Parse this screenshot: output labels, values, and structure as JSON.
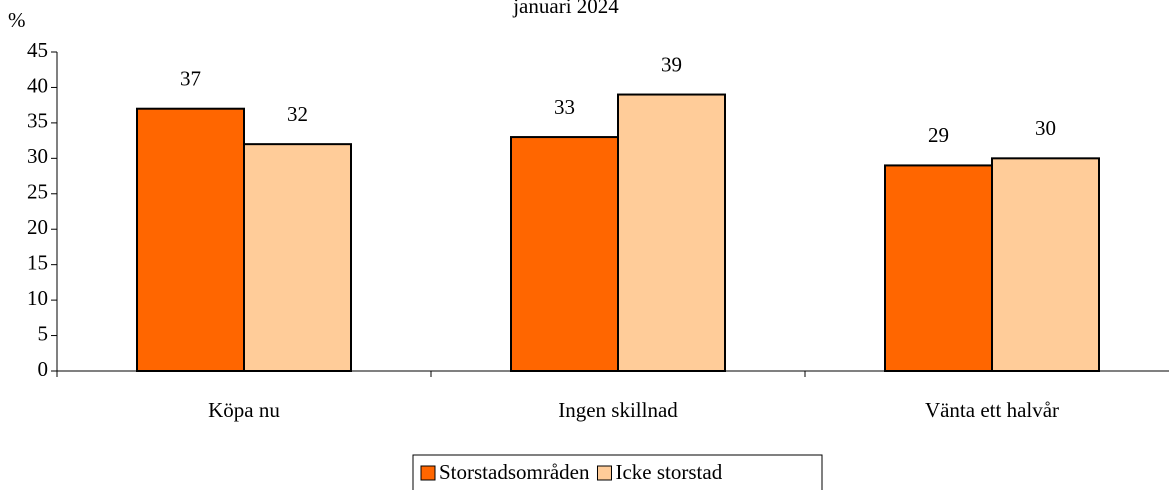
{
  "chart_data": {
    "type": "bar",
    "title": "januari 2024",
    "y_label": "%",
    "categories": [
      "Köpa nu",
      "Ingen skillnad",
      "Vänta ett halvår"
    ],
    "series": [
      {
        "name": "Storstadsområden",
        "color": "#ff6600",
        "values": [
          37,
          33,
          29
        ]
      },
      {
        "name": "Icke storstad",
        "color": "#ffcc99",
        "values": [
          32,
          39,
          30
        ]
      }
    ],
    "ylim": [
      0,
      45
    ],
    "yticks": [
      0,
      5,
      10,
      15,
      20,
      25,
      30,
      35,
      40,
      45
    ],
    "grid": false,
    "legend": "bottom"
  }
}
